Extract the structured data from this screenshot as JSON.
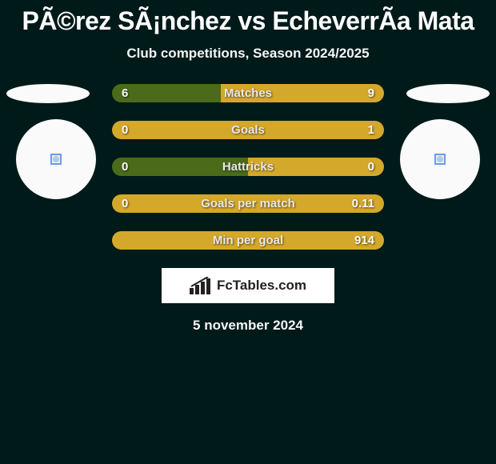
{
  "title": "PÃ©rez SÃ¡nchez vs EcheverrÃ­a Mata",
  "subtitle": "Club competitions, Season 2024/2025",
  "date": "5 november 2024",
  "brand": "FcTables.com",
  "colors": {
    "left": "#4b6b1a",
    "right": "#d4a82a",
    "background": "#001a1a"
  },
  "bars": [
    {
      "label": "Matches",
      "left": "6",
      "right": "9",
      "left_pct": 40,
      "right_pct": 60
    },
    {
      "label": "Goals",
      "left": "0",
      "right": "1",
      "left_pct": 0,
      "right_pct": 100
    },
    {
      "label": "Hattricks",
      "left": "0",
      "right": "0",
      "left_pct": 50,
      "right_pct": 50
    },
    {
      "label": "Goals per match",
      "left": "0",
      "right": "0.11",
      "left_pct": 0,
      "right_pct": 100
    },
    {
      "label": "Min per goal",
      "left": "",
      "right": "914",
      "left_pct": 0,
      "right_pct": 100
    }
  ]
}
